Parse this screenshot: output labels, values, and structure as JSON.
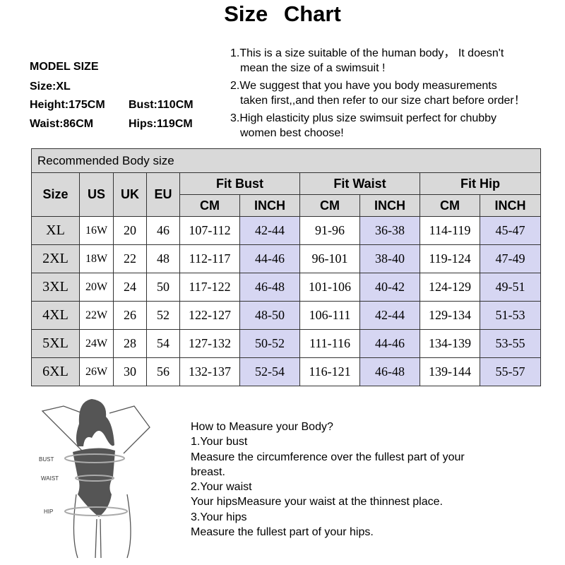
{
  "title": "Size   Chart",
  "model": {
    "heading": "MODEL    SIZE",
    "size": "Size:XL",
    "height": "Height:175CM",
    "bust": "Bust:110CM",
    "waist": "Waist:86CM",
    "hips": "Hips:119CM"
  },
  "notes": [
    [
      "1.This is a size suitable of the human body， It doesn't",
      "mean the size of a swimsuit !"
    ],
    [
      "2.We suggest that you have you body measurements",
      "taken first,,and then refer to our size chart before order！"
    ],
    [
      "3.High elasticity plus size swimsuit perfect for chubby",
      "women best choose!"
    ]
  ],
  "table": {
    "caption": "Recommended Body size",
    "headers": {
      "size": "Size",
      "us": "US",
      "uk": "UK",
      "eu": "EU",
      "groups": [
        "Fit  Bust",
        "Fit  Waist",
        "Fit  Hip"
      ],
      "cm": "CM",
      "inch": "INCH"
    },
    "rows": [
      [
        "XL",
        "16W",
        "20",
        "46",
        "107-112",
        "42-44",
        "91-96",
        "36-38",
        "114-119",
        "45-47"
      ],
      [
        "2XL",
        "18W",
        "22",
        "48",
        "112-117",
        "44-46",
        "96-101",
        "38-40",
        "119-124",
        "47-49"
      ],
      [
        "3XL",
        "20W",
        "24",
        "50",
        "117-122",
        "46-48",
        "101-106",
        "40-42",
        "124-129",
        "49-51"
      ],
      [
        "4XL",
        "22W",
        "26",
        "52",
        "122-127",
        "48-50",
        "106-111",
        "42-44",
        "129-134",
        "51-53"
      ],
      [
        "5XL",
        "24W",
        "28",
        "54",
        "127-132",
        "50-52",
        "111-116",
        "44-46",
        "134-139",
        "53-55"
      ],
      [
        "6XL",
        "26W",
        "30",
        "56",
        "132-137",
        "52-54",
        "116-121",
        "46-48",
        "139-144",
        "55-57"
      ]
    ],
    "colors": {
      "header": "#d9d9d9",
      "inch": "#d6d6f2"
    }
  },
  "figure": {
    "labels": [
      "BUST",
      "WAIST",
      "HIP"
    ]
  },
  "howto": [
    "How to Measure your Body?",
    "1.Your bust",
    "Measure the circumference over the fullest part of your",
    "breast.",
    "2.Your waist",
    "Your hipsMeasure your waist at the thinnest place.",
    "3.Your hips",
    "Measure the fullest part of your hips."
  ]
}
